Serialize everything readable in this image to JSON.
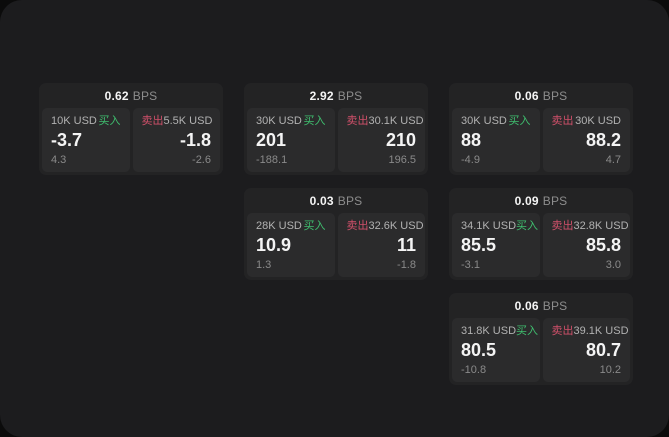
{
  "app": {
    "name": "spread-quote-board",
    "unit_label": "BPS"
  },
  "colors": {
    "page_bg": "#0b0b0b",
    "panel_bg": "#1c1c1e",
    "card_bg": "#232324",
    "tile_bg": "#2b2b2c",
    "buy_green": "#3fbf6f",
    "sell_red": "#d0506a",
    "primary_text": "#f4f4f4",
    "muted_text": "#8a8a8a"
  },
  "cards": [
    {
      "bps_value": "0.62",
      "bps_label": "BPS",
      "buy": {
        "amount": "10K USD",
        "side_label": "买入",
        "price": "-3.7",
        "delta": "4.3"
      },
      "sell": {
        "amount": "5.5K USD",
        "side_label": "卖出",
        "price": "-1.8",
        "delta": "-2.6"
      }
    },
    {
      "bps_value": "2.92",
      "bps_label": "BPS",
      "buy": {
        "amount": "30K USD",
        "side_label": "买入",
        "price": "201",
        "delta": "-188.1"
      },
      "sell": {
        "amount": "30.1K USD",
        "side_label": "卖出",
        "price": "210",
        "delta": "196.5"
      }
    },
    {
      "bps_value": "0.06",
      "bps_label": "BPS",
      "buy": {
        "amount": "30K USD",
        "side_label": "买入",
        "price": "88",
        "delta": "-4.9"
      },
      "sell": {
        "amount": "30K USD",
        "side_label": "卖出",
        "price": "88.2",
        "delta": "4.7"
      }
    },
    {
      "bps_value": "0.03",
      "bps_label": "BPS",
      "buy": {
        "amount": "28K USD",
        "side_label": "买入",
        "price": "10.9",
        "delta": "1.3"
      },
      "sell": {
        "amount": "32.6K USD",
        "side_label": "卖出",
        "price": "11",
        "delta": "-1.8"
      }
    },
    {
      "bps_value": "0.09",
      "bps_label": "BPS",
      "buy": {
        "amount": "34.1K USD",
        "side_label": "买入",
        "price": "85.5",
        "delta": "-3.1"
      },
      "sell": {
        "amount": "32.8K USD",
        "side_label": "卖出",
        "price": "85.8",
        "delta": "3.0"
      }
    },
    {
      "bps_value": "0.06",
      "bps_label": "BPS",
      "buy": {
        "amount": "31.8K USD",
        "side_label": "买入",
        "price": "80.5",
        "delta": "-10.8"
      },
      "sell": {
        "amount": "39.1K USD",
        "side_label": "卖出",
        "price": "80.7",
        "delta": "10.2"
      }
    }
  ]
}
